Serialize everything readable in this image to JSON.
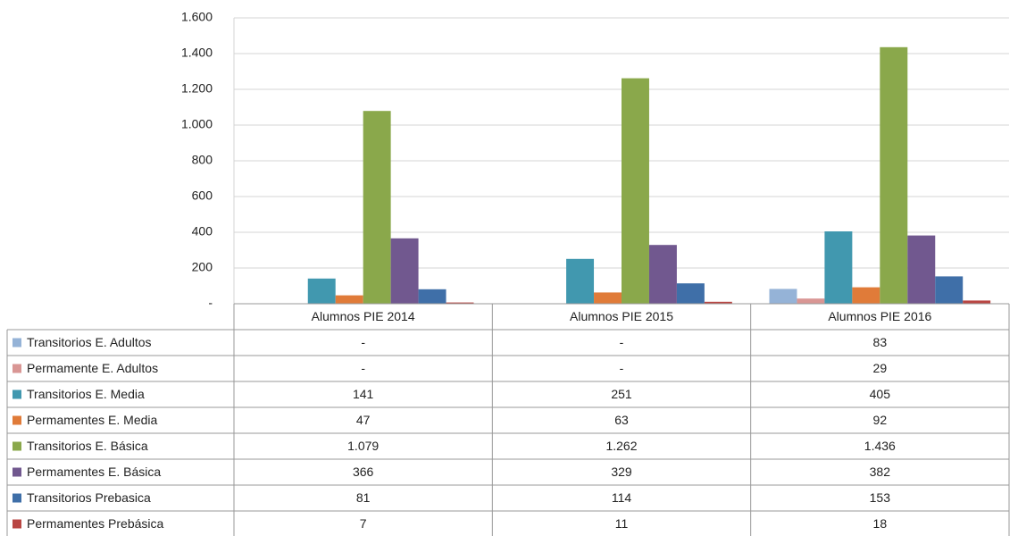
{
  "chart_data": {
    "type": "bar",
    "categories": [
      "Alumnos PIE 2014",
      "Alumnos PIE 2015",
      "Alumnos PIE 2016"
    ],
    "series": [
      {
        "name": "Transitorios E. Adultos",
        "color": "#95b3d7",
        "values": [
          null,
          null,
          83
        ],
        "value_labels": [
          "-",
          "-",
          "83"
        ]
      },
      {
        "name": "Permamente E. Adultos",
        "color": "#d99694",
        "values": [
          null,
          null,
          29
        ],
        "value_labels": [
          "-",
          "-",
          "29"
        ]
      },
      {
        "name": "Transitorios E. Media",
        "color": "#4198af",
        "values": [
          141,
          251,
          405
        ]
      },
      {
        "name": "Permamentes E. Media",
        "color": "#e07b39",
        "values": [
          47,
          63,
          92
        ]
      },
      {
        "name": "Transitorios E. Básica",
        "color": "#8aa84b",
        "values": [
          1079,
          1262,
          1436
        ],
        "value_labels": [
          "1.079",
          "1.262",
          "1.436"
        ]
      },
      {
        "name": "Permamentes E. Básica",
        "color": "#71588f",
        "values": [
          366,
          329,
          382
        ]
      },
      {
        "name": "Transitorios Prebasica",
        "color": "#3f6fa8",
        "values": [
          81,
          114,
          153
        ]
      },
      {
        "name": "Permamentes Prebásica",
        "color": "#b94643",
        "values": [
          7,
          11,
          18
        ]
      }
    ],
    "ylim": [
      0,
      1600
    ],
    "yticks": [
      {
        "value": 0,
        "label": "-"
      },
      200,
      400,
      600,
      800,
      {
        "value": 1000,
        "label": "1.000"
      },
      {
        "value": 1200,
        "label": "1.200"
      },
      {
        "value": 1400,
        "label": "1.400"
      },
      {
        "value": 1600,
        "label": "1.600"
      }
    ],
    "grid": true
  }
}
